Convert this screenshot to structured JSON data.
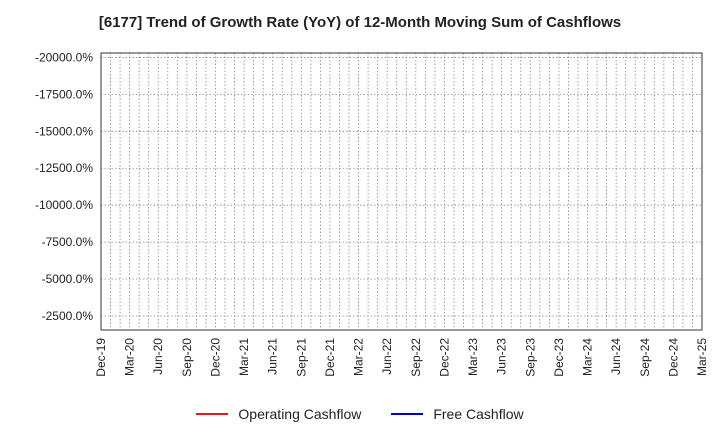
{
  "chart_data": {
    "type": "line",
    "title": "[6177]  Trend of Growth Rate (YoY) of 12-Month Moving Sum of Cashflows",
    "xlabel": "",
    "ylabel": "",
    "x_ticks": [
      "Dec-19",
      "Mar-20",
      "Jun-20",
      "Sep-20",
      "Dec-20",
      "Mar-21",
      "Jun-21",
      "Sep-21",
      "Dec-21",
      "Mar-22",
      "Jun-22",
      "Sep-22",
      "Dec-22",
      "Mar-23",
      "Jun-23",
      "Sep-23",
      "Dec-23",
      "Mar-24",
      "Jun-24",
      "Sep-24",
      "Dec-24",
      "Mar-25"
    ],
    "y_ticks": [
      -20000,
      -17500,
      -15000,
      -12500,
      -10000,
      -7500,
      -5000,
      -2500
    ],
    "y_tick_labels": [
      "-20000.0%",
      "-17500.0%",
      "-15000.0%",
      "-12500.0%",
      "-10000.0%",
      "-7500.0%",
      "-5000.0%",
      "-2500.0%"
    ],
    "ylim": [
      -20300,
      -1550
    ],
    "y_inverted": true,
    "grid": true,
    "legend_position": "bottom",
    "series": [
      {
        "name": "Operating Cashflow",
        "color": "#e31a1c",
        "values": []
      },
      {
        "name": "Free Cashflow",
        "color": "#0000cc",
        "values": []
      }
    ]
  }
}
